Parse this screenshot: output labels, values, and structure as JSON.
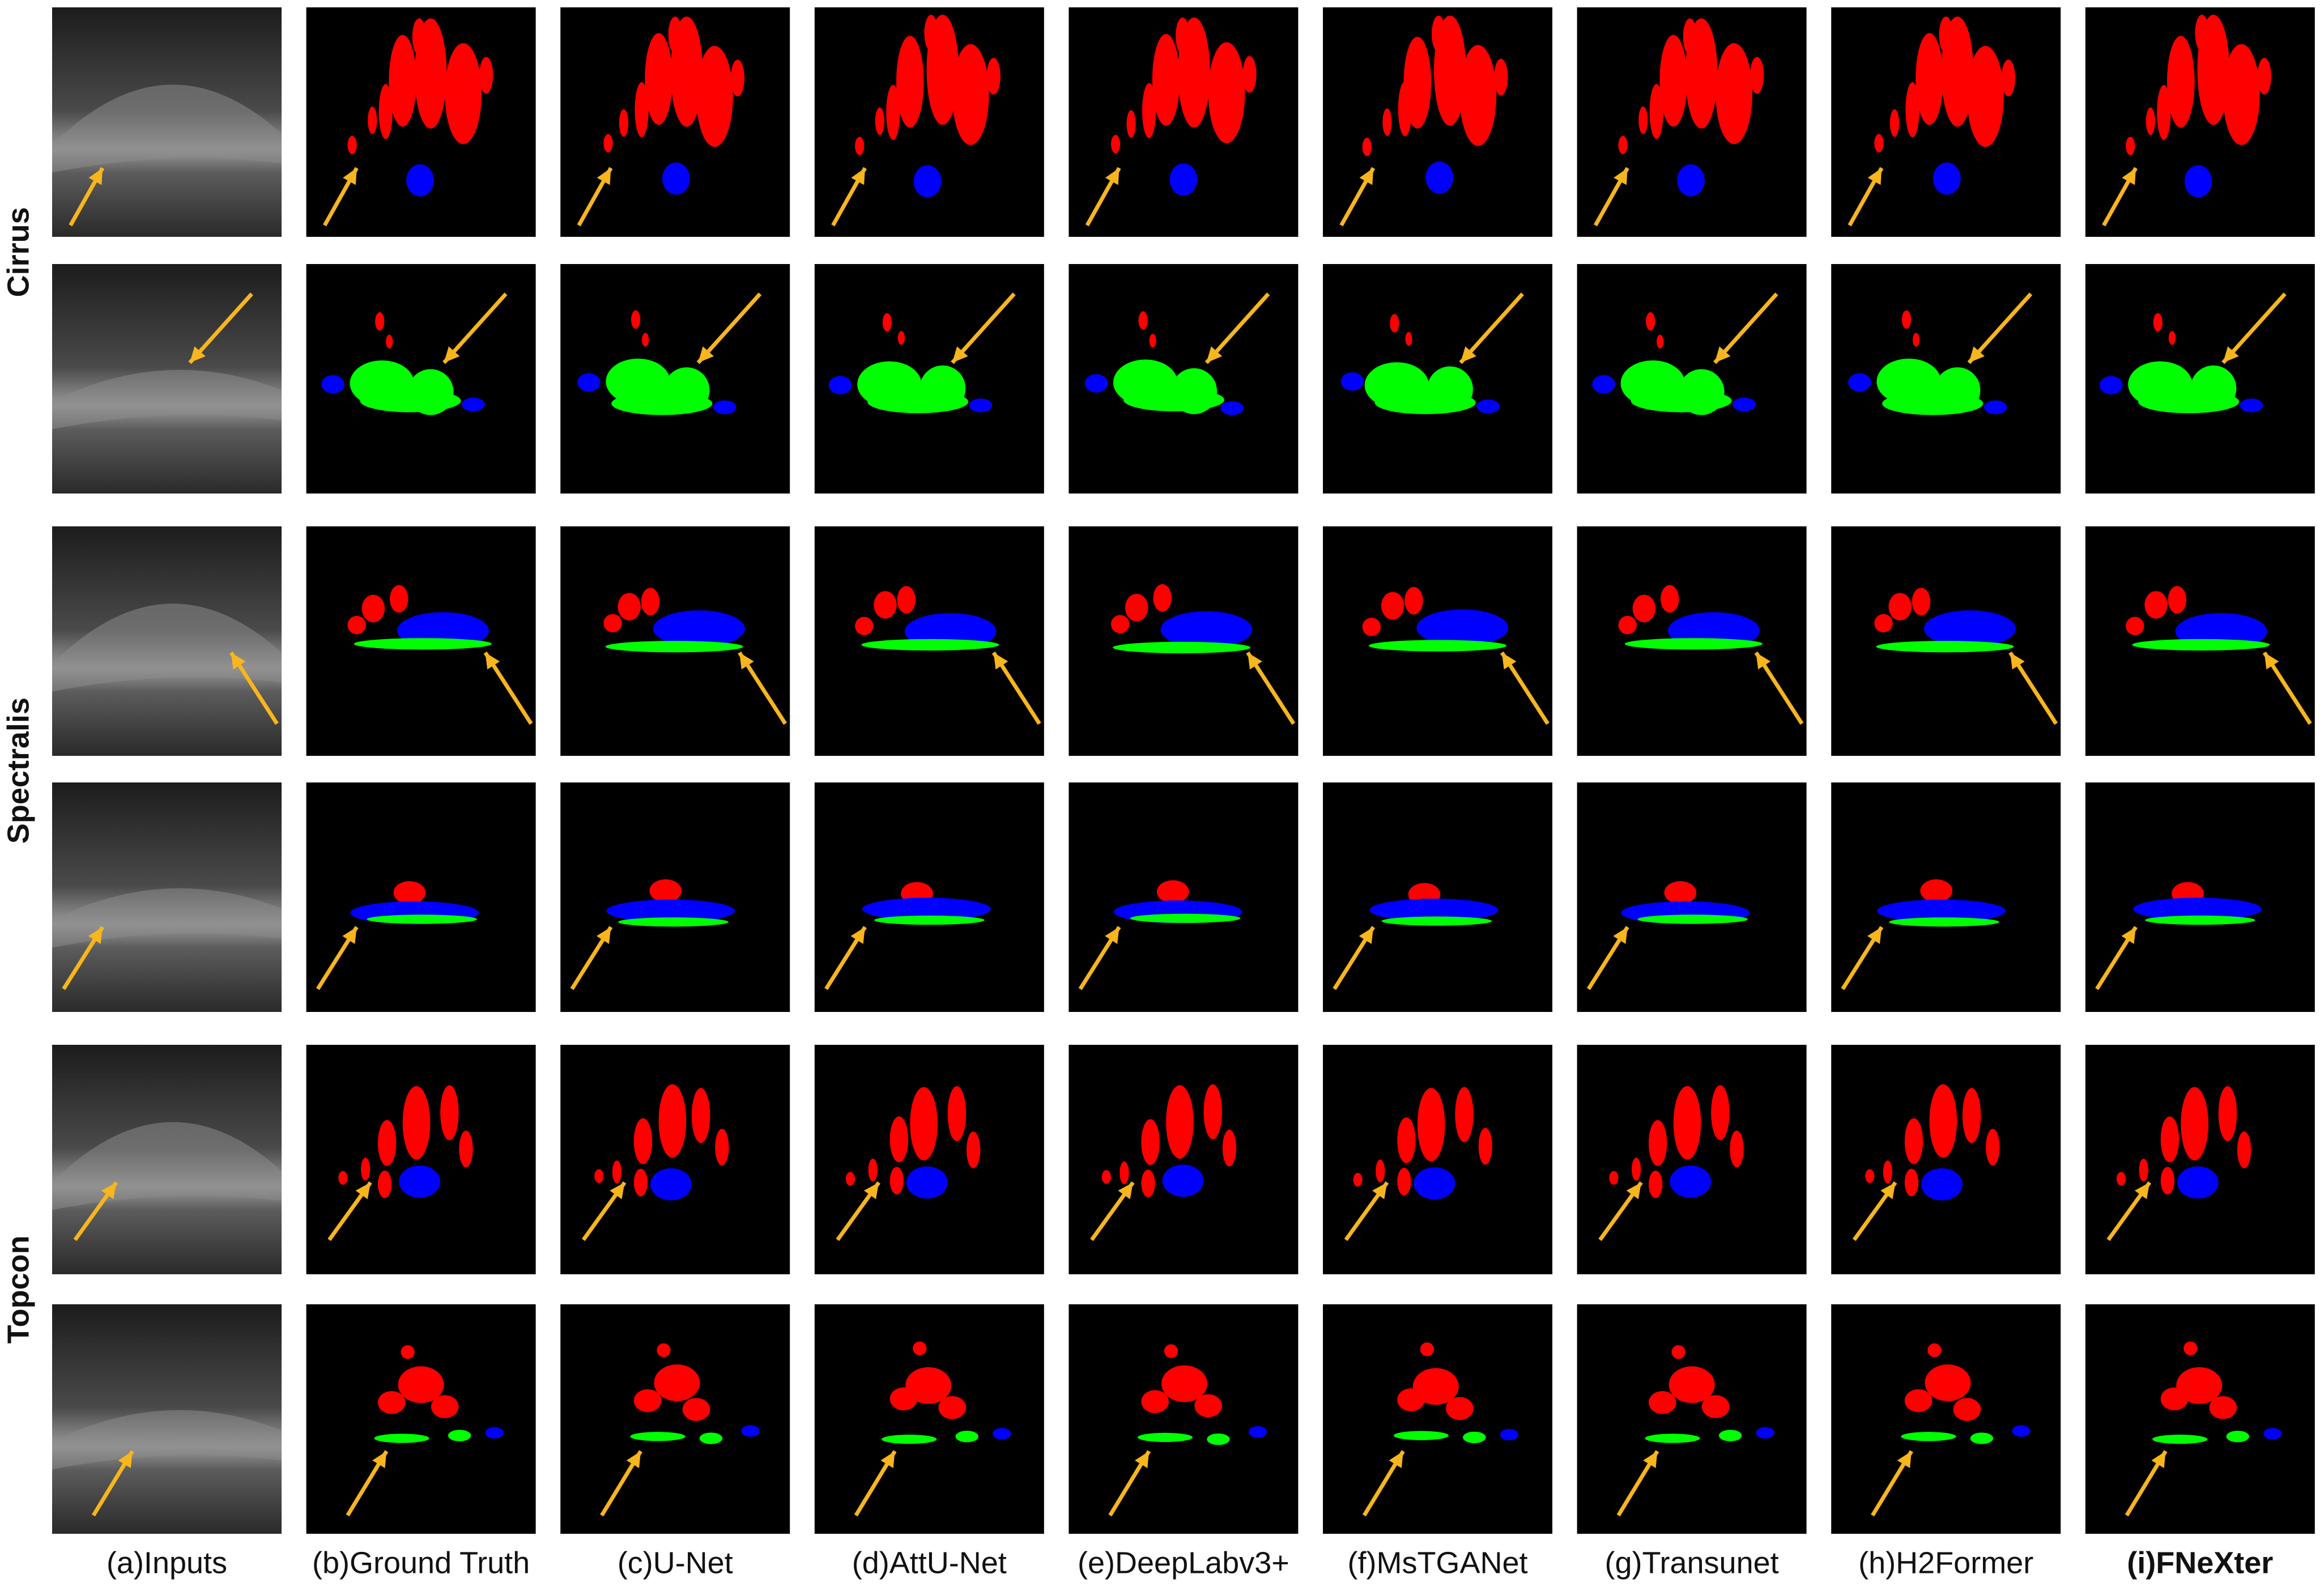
{
  "row_labels": [
    "Cirrus",
    "Spectralis",
    "Topcon"
  ],
  "column_labels": [
    "(a)Inputs",
    "(b)Ground Truth",
    "(c)U-Net",
    "(d)AttU-Net",
    "(e)DeepLabv3+",
    "(f)MsTGANet",
    "(g)Transunet",
    "(h)H2Former",
    "(i)FNeXter"
  ]
}
